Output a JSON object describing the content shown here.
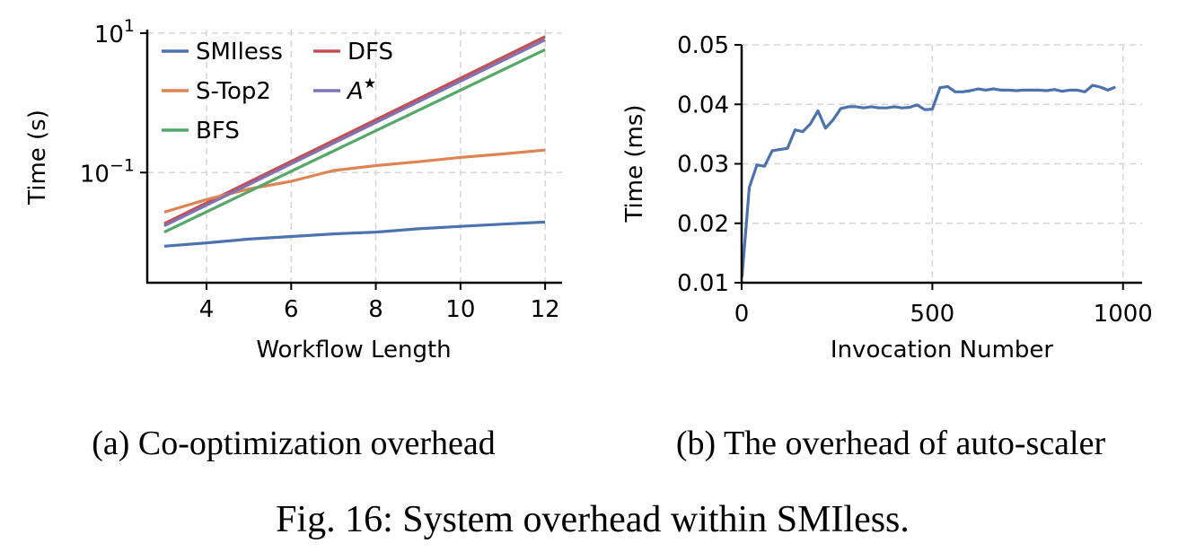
{
  "chart_data": [
    {
      "type": "line",
      "xlabel": "Workflow Length",
      "ylabel": "Time (s)",
      "yscale": "log",
      "xlim": [
        2.6,
        12.4
      ],
      "ylim_log10": [
        -2.58,
        1.05
      ],
      "xticks": [
        {
          "value": 4,
          "label": "4"
        },
        {
          "value": 6,
          "label": "6"
        },
        {
          "value": 8,
          "label": "8"
        },
        {
          "value": 10,
          "label": "10"
        },
        {
          "value": 12,
          "label": "12"
        }
      ],
      "yticks": [
        {
          "log10": 1,
          "base": "10",
          "exp": "1"
        },
        {
          "log10": -1,
          "base": "10",
          "exp": "−1"
        }
      ],
      "grid": true,
      "legend": "top-left",
      "series": [
        {
          "name": "SMIless",
          "color": "#4c72b0",
          "x": [
            3,
            4,
            5,
            6,
            7,
            8,
            9,
            10,
            11,
            12
          ],
          "y": [
            0.0088,
            0.0098,
            0.0111,
            0.0121,
            0.0132,
            0.014,
            0.0156,
            0.0169,
            0.0182,
            0.0195
          ]
        },
        {
          "name": "DFS",
          "color": "#c44e52",
          "x": [
            3,
            12
          ],
          "y": [
            0.0185,
            8.9
          ]
        },
        {
          "name": "S-Top2",
          "color": "#dd8452",
          "x": [
            3,
            4,
            5,
            6,
            7,
            8,
            9,
            10,
            11,
            12
          ],
          "y": [
            0.027,
            0.041,
            0.058,
            0.075,
            0.107,
            0.126,
            0.143,
            0.165,
            0.185,
            0.21
          ]
        },
        {
          "name": "A",
          "name_sup": "★",
          "color": "#8172b3",
          "x": [
            3,
            12
          ],
          "y": [
            0.0172,
            8.0
          ]
        },
        {
          "name": "BFS",
          "color": "#55a868",
          "x": [
            3,
            12
          ],
          "y": [
            0.014,
            5.8
          ]
        }
      ]
    },
    {
      "type": "line",
      "xlabel": "Invocation Number",
      "ylabel": "Time (ms)",
      "xlim": [
        0,
        1050
      ],
      "ylim": [
        0.01,
        0.05
      ],
      "xticks": [
        {
          "value": 0,
          "label": "0"
        },
        {
          "value": 500,
          "label": "500"
        },
        {
          "value": 1000,
          "label": "1000"
        }
      ],
      "yticks": [
        {
          "value": 0.01,
          "label": "0.01"
        },
        {
          "value": 0.02,
          "label": "0.02"
        },
        {
          "value": 0.03,
          "label": "0.03"
        },
        {
          "value": 0.04,
          "label": "0.04"
        },
        {
          "value": 0.05,
          "label": "0.05"
        }
      ],
      "grid": true,
      "series": [
        {
          "name": "",
          "color": "#4c72b0",
          "x": [
            1,
            20,
            40,
            60,
            80,
            100,
            120,
            140,
            160,
            180,
            200,
            220,
            240,
            260,
            280,
            300,
            320,
            340,
            360,
            380,
            400,
            420,
            440,
            460,
            480,
            500,
            520,
            540,
            560,
            580,
            600,
            620,
            640,
            660,
            680,
            700,
            720,
            740,
            760,
            780,
            800,
            820,
            840,
            860,
            880,
            900,
            920,
            940,
            960,
            980
          ],
          "y": [
            0.011,
            0.026,
            0.0298,
            0.0296,
            0.0322,
            0.0324,
            0.0326,
            0.0357,
            0.0354,
            0.0367,
            0.0389,
            0.036,
            0.0374,
            0.0393,
            0.0396,
            0.0396,
            0.0394,
            0.0396,
            0.0394,
            0.0394,
            0.0396,
            0.0394,
            0.0395,
            0.0399,
            0.0391,
            0.0392,
            0.0428,
            0.043,
            0.0421,
            0.0421,
            0.0423,
            0.0426,
            0.0424,
            0.0426,
            0.0424,
            0.0424,
            0.0423,
            0.0424,
            0.0424,
            0.0424,
            0.0423,
            0.0425,
            0.0422,
            0.0424,
            0.0424,
            0.0421,
            0.0432,
            0.0429,
            0.0424,
            0.0429
          ]
        }
      ]
    }
  ],
  "captions": {
    "sub_a": "(a) Co-optimization overhead",
    "sub_b": "(b) The overhead of auto-scaler",
    "figure": "Fig. 16: System overhead within SMIless."
  }
}
